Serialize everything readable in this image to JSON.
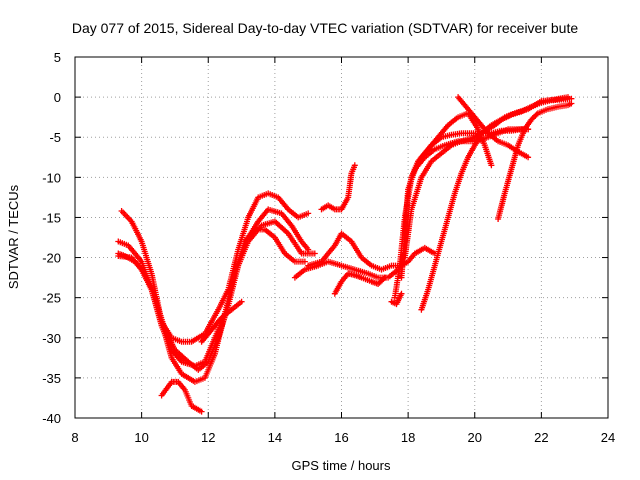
{
  "chart_data": {
    "type": "scatter",
    "title": "Day 077 of 2015, Sidereal Day-to-day VTEC variation (SDTVAR) for receiver bute",
    "xlabel": "GPS time / hours",
    "ylabel": "SDTVAR / TECUs",
    "xlim": [
      8,
      24
    ],
    "ylim": [
      -40,
      5
    ],
    "xticks": [
      8,
      10,
      12,
      14,
      16,
      18,
      20,
      22,
      24
    ],
    "yticks": [
      5,
      0,
      -5,
      -10,
      -15,
      -20,
      -25,
      -30,
      -35,
      -40
    ],
    "grid": true,
    "marker": "+",
    "color": "#ff0000",
    "series": [
      {
        "points": [
          [
            9.3,
            -19.5
          ],
          [
            9.5,
            -19.8
          ],
          [
            9.8,
            -20.5
          ],
          [
            10.0,
            -21.5
          ],
          [
            10.3,
            -24
          ],
          [
            10.6,
            -28.5
          ],
          [
            10.9,
            -31.5
          ],
          [
            11.2,
            -33
          ],
          [
            11.6,
            -33.5
          ],
          [
            11.9,
            -33
          ],
          [
            12.2,
            -30
          ],
          [
            12.5,
            -27
          ],
          [
            12.8,
            -22
          ],
          [
            13.2,
            -17.5
          ],
          [
            13.5,
            -15.5
          ],
          [
            13.8,
            -14
          ],
          [
            14.2,
            -14.5
          ],
          [
            14.5,
            -16
          ],
          [
            14.8,
            -18
          ],
          [
            15.0,
            -19
          ]
        ]
      },
      {
        "points": [
          [
            9.3,
            -18
          ],
          [
            9.6,
            -18.5
          ],
          [
            10.0,
            -20.5
          ],
          [
            10.4,
            -25
          ],
          [
            10.7,
            -29
          ],
          [
            11.0,
            -31.5
          ],
          [
            11.4,
            -33
          ],
          [
            11.7,
            -34
          ],
          [
            12.0,
            -33
          ],
          [
            12.3,
            -30
          ],
          [
            12.6,
            -26
          ],
          [
            12.9,
            -21
          ],
          [
            13.2,
            -18
          ],
          [
            13.6,
            -16
          ],
          [
            14.0,
            -15.5
          ],
          [
            14.4,
            -17
          ],
          [
            14.8,
            -19.5
          ],
          [
            15.2,
            -19.5
          ]
        ]
      },
      {
        "points": [
          [
            9.4,
            -14.2
          ],
          [
            9.7,
            -15.5
          ],
          [
            10.0,
            -18
          ],
          [
            10.3,
            -22
          ],
          [
            10.6,
            -28
          ],
          [
            10.9,
            -32.5
          ],
          [
            11.2,
            -34.5
          ],
          [
            11.6,
            -35.5
          ],
          [
            11.9,
            -35
          ],
          [
            12.2,
            -32
          ],
          [
            12.5,
            -27
          ],
          [
            12.8,
            -22
          ],
          [
            13.1,
            -18
          ],
          [
            13.4,
            -16.5
          ],
          [
            13.7,
            -16.5
          ],
          [
            14.0,
            -17.5
          ],
          [
            14.3,
            -19.5
          ],
          [
            14.6,
            -20.5
          ],
          [
            14.9,
            -20.5
          ]
        ]
      },
      {
        "points": [
          [
            9.3,
            -19.8
          ],
          [
            9.7,
            -20
          ],
          [
            10.0,
            -21.5
          ],
          [
            10.3,
            -24
          ],
          [
            10.6,
            -28
          ],
          [
            10.9,
            -30
          ],
          [
            11.2,
            -30.5
          ],
          [
            11.5,
            -30.5
          ],
          [
            11.9,
            -29.5
          ],
          [
            12.3,
            -26.5
          ],
          [
            12.6,
            -24
          ],
          [
            12.9,
            -19
          ],
          [
            13.2,
            -15
          ],
          [
            13.5,
            -12.5
          ],
          [
            13.8,
            -12
          ],
          [
            14.1,
            -12.5
          ],
          [
            14.4,
            -14
          ],
          [
            14.7,
            -15
          ],
          [
            15.0,
            -14.5
          ]
        ]
      },
      {
        "points": [
          [
            10.6,
            -37.2
          ],
          [
            10.9,
            -35.5
          ],
          [
            11.1,
            -35.5
          ],
          [
            11.3,
            -36.5
          ],
          [
            11.5,
            -38.5
          ],
          [
            11.8,
            -39.2
          ]
        ]
      },
      {
        "points": [
          [
            11.8,
            -30.5
          ],
          [
            12.1,
            -29
          ],
          [
            12.4,
            -27.5
          ],
          [
            12.7,
            -26.5
          ],
          [
            13.0,
            -25.5
          ]
        ]
      },
      {
        "points": [
          [
            15.4,
            -14
          ],
          [
            15.6,
            -13.5
          ],
          [
            15.8,
            -14
          ],
          [
            16.0,
            -14
          ],
          [
            16.2,
            -12.5
          ],
          [
            16.3,
            -9.5
          ],
          [
            16.4,
            -8.5
          ]
        ]
      },
      {
        "points": [
          [
            15.0,
            -21
          ],
          [
            15.4,
            -20.5
          ],
          [
            15.8,
            -18.5
          ],
          [
            16.0,
            -17
          ],
          [
            16.3,
            -18
          ],
          [
            16.6,
            -20
          ],
          [
            16.9,
            -21
          ],
          [
            17.2,
            -21.5
          ],
          [
            17.5,
            -21
          ],
          [
            17.8,
            -21
          ],
          [
            18.0,
            -20.5
          ],
          [
            18.2,
            -19.5
          ],
          [
            18.5,
            -18.8
          ],
          [
            18.8,
            -19.5
          ]
        ]
      },
      {
        "points": [
          [
            14.6,
            -22.5
          ],
          [
            14.9,
            -21.5
          ],
          [
            15.3,
            -21
          ],
          [
            15.6,
            -20.5
          ],
          [
            16.0,
            -21
          ],
          [
            16.4,
            -21.5
          ],
          [
            16.8,
            -22
          ],
          [
            17.1,
            -22.5
          ],
          [
            17.4,
            -22.5
          ],
          [
            17.7,
            -21.5
          ],
          [
            17.9,
            -19.5
          ]
        ]
      },
      {
        "points": [
          [
            15.8,
            -24.5
          ],
          [
            16.0,
            -23
          ],
          [
            16.2,
            -22
          ],
          [
            16.4,
            -22.2
          ],
          [
            16.6,
            -22.5
          ],
          [
            16.9,
            -23
          ],
          [
            17.1,
            -23.3
          ],
          [
            17.3,
            -22.5
          ]
        ]
      },
      {
        "points": [
          [
            17.5,
            -25.5
          ],
          [
            17.65,
            -25.8
          ],
          [
            17.8,
            -24.5
          ]
        ]
      },
      {
        "points": [
          [
            17.6,
            -25
          ],
          [
            17.75,
            -21
          ],
          [
            17.9,
            -15
          ],
          [
            18.1,
            -10
          ],
          [
            18.4,
            -7.5
          ],
          [
            18.7,
            -6
          ],
          [
            19.0,
            -5
          ],
          [
            19.3,
            -4.7
          ],
          [
            19.6,
            -4.5
          ],
          [
            19.9,
            -4.5
          ],
          [
            20.2,
            -4.5
          ],
          [
            20.5,
            -4.5
          ],
          [
            20.8,
            -4.2
          ],
          [
            21.1,
            -4.2
          ],
          [
            21.4,
            -4
          ],
          [
            21.6,
            -4
          ]
        ]
      },
      {
        "points": [
          [
            17.8,
            -22.5
          ],
          [
            17.9,
            -17
          ],
          [
            18.0,
            -11.5
          ],
          [
            18.2,
            -9
          ],
          [
            18.5,
            -7.5
          ],
          [
            18.8,
            -6.5
          ],
          [
            19.1,
            -6
          ],
          [
            19.5,
            -5.5
          ],
          [
            19.8,
            -5.5
          ],
          [
            20.1,
            -5.5
          ],
          [
            20.4,
            -5
          ],
          [
            20.7,
            -4.5
          ],
          [
            21.0,
            -4
          ],
          [
            21.3,
            -4
          ],
          [
            21.6,
            -4
          ]
        ]
      },
      {
        "points": [
          [
            17.9,
            -20
          ],
          [
            18.1,
            -14
          ],
          [
            18.4,
            -10
          ],
          [
            18.7,
            -8
          ],
          [
            19.0,
            -7
          ],
          [
            19.3,
            -6
          ],
          [
            19.6,
            -5.5
          ],
          [
            20.0,
            -5
          ],
          [
            20.3,
            -4.2
          ],
          [
            20.6,
            -3.5
          ],
          [
            20.9,
            -2.5
          ],
          [
            21.2,
            -2
          ],
          [
            21.6,
            -1.5
          ],
          [
            22.0,
            -0.5
          ],
          [
            22.4,
            -0.3
          ],
          [
            22.8,
            0
          ]
        ]
      },
      {
        "points": [
          [
            18.1,
            -10
          ],
          [
            18.3,
            -8
          ],
          [
            18.6,
            -6.5
          ],
          [
            18.9,
            -5
          ],
          [
            19.2,
            -3.5
          ],
          [
            19.5,
            -2.5
          ],
          [
            19.8,
            -2
          ],
          [
            20.1,
            -4
          ],
          [
            20.3,
            -6
          ],
          [
            20.5,
            -8.5
          ]
        ]
      },
      {
        "points": [
          [
            19.5,
            0
          ],
          [
            19.8,
            -1.5
          ],
          [
            20.1,
            -3
          ],
          [
            20.4,
            -4.5
          ],
          [
            20.7,
            -5.5
          ],
          [
            21.0,
            -6
          ],
          [
            21.3,
            -6.8
          ],
          [
            21.6,
            -7.5
          ]
        ]
      },
      {
        "points": [
          [
            18.4,
            -26.5
          ],
          [
            18.6,
            -24
          ],
          [
            18.8,
            -21
          ],
          [
            19.0,
            -18
          ],
          [
            19.2,
            -15
          ],
          [
            19.4,
            -12
          ],
          [
            19.6,
            -9.5
          ],
          [
            19.8,
            -7.5
          ],
          [
            20.0,
            -6
          ],
          [
            20.2,
            -4.5
          ],
          [
            20.5,
            -3.5
          ],
          [
            20.8,
            -2.8
          ],
          [
            21.1,
            -2.2
          ],
          [
            21.4,
            -1.8
          ],
          [
            21.7,
            -1.2
          ],
          [
            22.0,
            -0.7
          ],
          [
            22.3,
            -0.4
          ],
          [
            22.6,
            -0.3
          ],
          [
            22.9,
            -0.2
          ]
        ]
      },
      {
        "points": [
          [
            20.7,
            -15.2
          ],
          [
            20.9,
            -12
          ],
          [
            21.1,
            -9
          ],
          [
            21.3,
            -6
          ],
          [
            21.5,
            -4
          ],
          [
            21.7,
            -2.8
          ],
          [
            21.9,
            -2
          ],
          [
            22.2,
            -1.5
          ],
          [
            22.5,
            -1.2
          ],
          [
            22.8,
            -1
          ],
          [
            22.9,
            -0.8
          ]
        ]
      }
    ]
  }
}
